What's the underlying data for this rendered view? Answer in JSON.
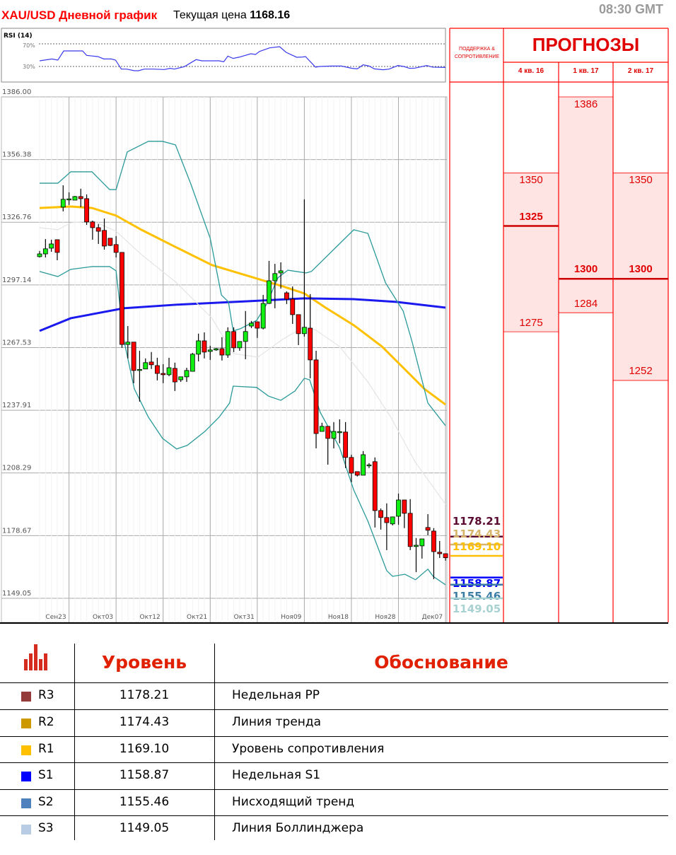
{
  "header": {
    "title": "XAU/USD Дневной график",
    "price_label": "Текущая цена",
    "price_value": "1168.16",
    "time": "08:30 GMT"
  },
  "chart_data": {
    "type": "candlestick",
    "instrument": "XAU/USD",
    "price_ticks": [
      "1386.00",
      "1356.38",
      "1326.76",
      "1297.14",
      "1267.53",
      "1237.91",
      "1208.29",
      "1178.67",
      "1149.05"
    ],
    "ylim": [
      1149.05,
      1386.0
    ],
    "date_ticks": [
      {
        "label": "Сен23",
        "candle": 6
      },
      {
        "label": "Окт03",
        "candle": 14
      },
      {
        "label": "Окт12",
        "candle": 22
      },
      {
        "label": "Окт21",
        "candle": 30
      },
      {
        "label": "Окт31",
        "candle": 38
      },
      {
        "label": "Ноя09",
        "candle": 46
      },
      {
        "label": "Ноя18",
        "candle": 54
      },
      {
        "label": "Ноя28",
        "candle": 62
      },
      {
        "label": "Дек07",
        "candle": 70
      }
    ],
    "grid": true,
    "candles_ohlc": [
      [
        1310.5,
        1313.2,
        1310.1,
        1311.8
      ],
      [
        1311.8,
        1318.8,
        1310.1,
        1314.2
      ],
      [
        1314.5,
        1318.5,
        1312.8,
        1316.5
      ],
      [
        1318.5,
        1318.5,
        1308.8,
        1312.5
      ],
      [
        1333.9,
        1344.2,
        1331.9,
        1337.6
      ],
      [
        1337.6,
        1340.9,
        1334.9,
        1337.8
      ],
      [
        1337.2,
        1339.2,
        1337.2,
        1338.9
      ],
      [
        1338.9,
        1342.6,
        1333.9,
        1337.9
      ],
      [
        1337.9,
        1339.9,
        1325.5,
        1326.9
      ],
      [
        1326.9,
        1327.5,
        1318.5,
        1324.2
      ],
      [
        1324.2,
        1325.9,
        1316.5,
        1322.5
      ],
      [
        1322.9,
        1328.5,
        1313.8,
        1315.5
      ],
      [
        1319.2,
        1319.2,
        1315.5,
        1315.8
      ],
      [
        1316.2,
        1320.2,
        1310.1,
        1312.5
      ],
      [
        1312.5,
        1312.5,
        1267.4,
        1269.0
      ],
      [
        1269.0,
        1277.7,
        1262.4,
        1270.1
      ],
      [
        1270.1,
        1270.1,
        1250.7,
        1256.7
      ],
      [
        1257.0,
        1266.0,
        1242.0,
        1257.2
      ],
      [
        1257.4,
        1262.4,
        1257.4,
        1260.4
      ],
      [
        1260.7,
        1265.4,
        1257.4,
        1259.4
      ],
      [
        1259.0,
        1262.7,
        1252.0,
        1255.3
      ],
      [
        1255.3,
        1259.7,
        1250.7,
        1254.7
      ],
      [
        1254.7,
        1262.7,
        1254.0,
        1258.0
      ],
      [
        1257.7,
        1260.4,
        1247.0,
        1251.3
      ],
      [
        1252.3,
        1253.7,
        1251.3,
        1253.7
      ],
      [
        1253.7,
        1258.0,
        1251.3,
        1256.7
      ],
      [
        1256.3,
        1265.0,
        1256.3,
        1264.4
      ],
      [
        1264.4,
        1274.1,
        1261.0,
        1270.7
      ],
      [
        1270.7,
        1274.7,
        1262.4,
        1265.4
      ],
      [
        1265.7,
        1268.4,
        1261.7,
        1266.4
      ],
      [
        1266.4,
        1267.4,
        1266.0,
        1267.0
      ],
      [
        1267.0,
        1272.4,
        1261.4,
        1264.0
      ],
      [
        1264.0,
        1277.1,
        1262.7,
        1275.1
      ],
      [
        1275.1,
        1277.1,
        1265.4,
        1267.4
      ],
      [
        1267.4,
        1270.4,
        1266.0,
        1270.4
      ],
      [
        1270.4,
        1284.8,
        1262.0,
        1275.1
      ],
      [
        1277.7,
        1280.1,
        1276.7,
        1279.1
      ],
      [
        1279.7,
        1279.7,
        1272.1,
        1276.7
      ],
      [
        1276.7,
        1292.4,
        1276.1,
        1288.4
      ],
      [
        1288.4,
        1308.5,
        1288.1,
        1299.1
      ],
      [
        1299.1,
        1307.1,
        1286.1,
        1302.5
      ],
      [
        1302.8,
        1307.8,
        1295.4,
        1303.8
      ],
      [
        1293.4,
        1294.1,
        1288.1,
        1290.4
      ],
      [
        1290.4,
        1296.4,
        1278.7,
        1283.1
      ],
      [
        1283.1,
        1283.1,
        1268.7,
        1274.1
      ],
      [
        1274.1,
        1337.6,
        1272.7,
        1277.1
      ],
      [
        1276.7,
        1292.8,
        1253.0,
        1261.7
      ],
      [
        1261.7,
        1266.0,
        1219.9,
        1226.9
      ],
      [
        1227.9,
        1232.0,
        1227.9,
        1230.3
      ],
      [
        1230.3,
        1230.3,
        1212.2,
        1224.6
      ],
      [
        1224.6,
        1232.3,
        1219.9,
        1227.9
      ],
      [
        1227.6,
        1233.6,
        1222.3,
        1227.8
      ],
      [
        1227.6,
        1232.3,
        1210.6,
        1215.6
      ],
      [
        1215.6,
        1216.9,
        1203.9,
        1208.2
      ],
      [
        1208.9,
        1208.9,
        1206.6,
        1207.2
      ],
      [
        1207.2,
        1218.6,
        1207.2,
        1216.9
      ],
      [
        1211.9,
        1212.9,
        1210.6,
        1212.1
      ],
      [
        1213.6,
        1215.6,
        1182.5,
        1190.5
      ],
      [
        1190.5,
        1191.5,
        1181.5,
        1187.2
      ],
      [
        1187.2,
        1193.9,
        1171.8,
        1184.8
      ],
      [
        1184.2,
        1187.5,
        1183.5,
        1187.5
      ],
      [
        1187.8,
        1198.5,
        1183.8,
        1195.5
      ],
      [
        1195.5,
        1195.5,
        1182.2,
        1189.2
      ],
      [
        1189.2,
        1195.9,
        1171.8,
        1173.5
      ],
      [
        1173.5,
        1177.5,
        1161.4,
        1174.1
      ],
      [
        1173.8,
        1177.1,
        1167.8,
        1177.1
      ],
      [
        1182.5,
        1188.8,
        1178.8,
        1181.2
      ],
      [
        1180.8,
        1182.2,
        1158.1,
        1171.1
      ],
      [
        1170.8,
        1176.1,
        1168.1,
        1170.1
      ],
      [
        1170.1,
        1170.1,
        1166.8,
        1168.2
      ]
    ],
    "indicator_lines": [
      {
        "kind": "moving-average",
        "color": "#ffc000",
        "points": [
          [
            1,
            1333.5
          ],
          [
            6.3,
            1334.2
          ],
          [
            9.9,
            1333.5
          ],
          [
            14,
            1329.9
          ],
          [
            18.3,
            1323.2
          ],
          [
            24.3,
            1314.8
          ],
          [
            30.3,
            1306.5
          ],
          [
            36.3,
            1301.5
          ],
          [
            42.3,
            1296.5
          ],
          [
            46,
            1293.1
          ],
          [
            49.6,
            1286.4
          ],
          [
            54.4,
            1278.1
          ],
          [
            59.2,
            1268.0
          ],
          [
            64,
            1254.7
          ],
          [
            66.4,
            1248.0
          ],
          [
            70,
            1240.6
          ]
        ]
      },
      {
        "kind": "moving-average",
        "color": "#1a1aee",
        "points": [
          [
            1,
            1275.4
          ],
          [
            6.3,
            1281.4
          ],
          [
            15.3,
            1286.1
          ],
          [
            24.3,
            1287.8
          ],
          [
            36.3,
            1289.4
          ],
          [
            46,
            1290.8
          ],
          [
            54.4,
            1290.4
          ],
          [
            61.6,
            1289.1
          ],
          [
            70,
            1286.4
          ]
        ]
      },
      {
        "kind": "bollinger-upper",
        "color": "#2a9a9a",
        "points": [
          [
            1,
            1345.2
          ],
          [
            4.1,
            1345.2
          ],
          [
            6.3,
            1350.6
          ],
          [
            9.9,
            1350.6
          ],
          [
            12.9,
            1342.2
          ],
          [
            14,
            1342.2
          ],
          [
            15.9,
            1360.0
          ],
          [
            19.5,
            1365.0
          ],
          [
            21.9,
            1365.0
          ],
          [
            24.1,
            1363.3
          ],
          [
            26.7,
            1344.9
          ],
          [
            30,
            1319.2
          ],
          [
            31.9,
            1292.4
          ],
          [
            33.1,
            1289.1
          ],
          [
            33.9,
            1275.4
          ],
          [
            35.1,
            1276.4
          ],
          [
            37.9,
            1280.4
          ],
          [
            39.6,
            1288.1
          ],
          [
            41.5,
            1300.5
          ],
          [
            43.2,
            1304.1
          ],
          [
            46.3,
            1302.8
          ],
          [
            47.2,
            1303.5
          ],
          [
            54.4,
            1323.2
          ],
          [
            56.8,
            1321.5
          ],
          [
            59.8,
            1298.1
          ],
          [
            62.8,
            1284.8
          ],
          [
            64.3,
            1270.4
          ],
          [
            67,
            1241.3
          ],
          [
            70,
            1230.6
          ]
        ]
      },
      {
        "kind": "bollinger-middle",
        "color": "#e4e4e4",
        "points": [
          [
            1,
            1324.2
          ],
          [
            4.1,
            1323.2
          ],
          [
            6.3,
            1326.5
          ],
          [
            9.9,
            1327.5
          ],
          [
            14,
            1322.5
          ],
          [
            18.3,
            1311.5
          ],
          [
            24.3,
            1298.1
          ],
          [
            30.3,
            1281.4
          ],
          [
            33.9,
            1264.7
          ],
          [
            38.1,
            1263.0
          ],
          [
            42.3,
            1271.4
          ],
          [
            46,
            1277.4
          ],
          [
            48,
            1275.7
          ],
          [
            52,
            1268.0
          ],
          [
            56.8,
            1251.3
          ],
          [
            60.7,
            1234.6
          ],
          [
            64.8,
            1213.6
          ],
          [
            70,
            1193.5
          ]
        ]
      },
      {
        "kind": "bollinger-lower",
        "color": "#2a9a9a",
        "points": [
          [
            1,
            1303.5
          ],
          [
            4.1,
            1301.1
          ],
          [
            6.3,
            1304.5
          ],
          [
            9.9,
            1305.8
          ],
          [
            12.9,
            1305.8
          ],
          [
            14,
            1303.8
          ],
          [
            15.3,
            1271.4
          ],
          [
            17.1,
            1248.0
          ],
          [
            19.5,
            1234.6
          ],
          [
            21.9,
            1224.6
          ],
          [
            24.3,
            1219.6
          ],
          [
            26.1,
            1221.3
          ],
          [
            29.1,
            1227.9
          ],
          [
            31.5,
            1234.6
          ],
          [
            33.3,
            1241.3
          ],
          [
            33.9,
            1249.3
          ],
          [
            37.9,
            1248.7
          ],
          [
            39.9,
            1244.6
          ],
          [
            42,
            1242.6
          ],
          [
            44.4,
            1247.0
          ],
          [
            46,
            1253.0
          ],
          [
            46.9,
            1252.3
          ],
          [
            48.7,
            1236.9
          ],
          [
            52,
            1220.2
          ],
          [
            54.4,
            1200.2
          ],
          [
            56.8,
            1185.5
          ],
          [
            60,
            1162.1
          ],
          [
            61,
            1159.4
          ],
          [
            63.1,
            1160.4
          ],
          [
            64.9,
            1157.8
          ],
          [
            67,
            1162.8
          ],
          [
            67.9,
            1159.4
          ],
          [
            70,
            1155.4
          ]
        ]
      }
    ],
    "rsi": {
      "label": "RSI (14)",
      "levels": [
        "70%",
        "30%"
      ],
      "color": "#3a3aee",
      "points": [
        [
          1,
          40.0
        ],
        [
          3.1,
          43.3
        ],
        [
          4.1,
          41.3
        ],
        [
          5.1,
          57.5
        ],
        [
          8.3,
          57.5
        ],
        [
          9,
          49.6
        ],
        [
          10.9,
          47.5
        ],
        [
          11.9,
          43.3
        ],
        [
          13.2,
          43.3
        ],
        [
          13.9,
          41.3
        ],
        [
          14.9,
          25.4
        ],
        [
          15.8,
          25.4
        ],
        [
          17.1,
          22.5
        ],
        [
          17.8,
          22.5
        ],
        [
          18.8,
          25.4
        ],
        [
          20.3,
          25.4
        ],
        [
          22.2,
          24.6
        ],
        [
          23.2,
          26.7
        ],
        [
          23.9,
          25.4
        ],
        [
          25.6,
          29.6
        ],
        [
          27.6,
          42.1
        ],
        [
          28.6,
          40.0
        ],
        [
          31.5,
          40.0
        ],
        [
          32.3,
          38.3
        ],
        [
          33,
          48.3
        ],
        [
          33.9,
          44.2
        ],
        [
          35,
          46.7
        ],
        [
          36.9,
          52.5
        ],
        [
          37.7,
          51.3
        ],
        [
          38.4,
          56.7
        ],
        [
          40.1,
          62.9
        ],
        [
          41.8,
          65.0
        ],
        [
          42.9,
          55.0
        ],
        [
          44.7,
          46.3
        ],
        [
          45.7,
          46.7
        ],
        [
          46.2,
          47.5
        ],
        [
          47.9,
          28.8
        ],
        [
          48.6,
          30.0
        ],
        [
          50.6,
          30.8
        ],
        [
          52.3,
          30.8
        ],
        [
          54.1,
          26.7
        ],
        [
          55,
          25.8
        ],
        [
          56,
          32.9
        ],
        [
          57,
          30.8
        ],
        [
          57.9,
          25.8
        ],
        [
          59.4,
          24.2
        ],
        [
          60.4,
          25.4
        ],
        [
          61.9,
          31.7
        ],
        [
          62.9,
          30.0
        ],
        [
          63.9,
          26.7
        ],
        [
          64.8,
          27.1
        ],
        [
          66.8,
          31.7
        ],
        [
          67.8,
          28.8
        ],
        [
          70,
          28.3
        ]
      ]
    },
    "support_resistance": [
      {
        "value": 1178.21,
        "label": "1178.21",
        "color": "#5a0a30"
      },
      {
        "value": 1174.43,
        "label": "1174.43",
        "color": "#d6b46a"
      },
      {
        "value": 1169.1,
        "label": "1169.10",
        "color": "#ffc000"
      },
      {
        "value": 1158.87,
        "label": "1158.87",
        "color": "#0000ff"
      },
      {
        "value": 1155.46,
        "label": "1155.46",
        "color": "#3a7ca5"
      },
      {
        "value": 1149.05,
        "label": "1149.05",
        "color": "#a8d2d2"
      }
    ]
  },
  "forecast": {
    "sr_header": "ПОДДЕРЖКА & СОПРОТИВЛЕНИЕ",
    "title": "ПРОГНОЗЫ",
    "accent": "#ff0000",
    "zone_color": "#ffe4e4",
    "quarters": [
      {
        "label": "4 кв. 16",
        "high": 1350,
        "main": 1325,
        "low": 1275,
        "high_label": "1350",
        "main_label": "1325",
        "low_label": "1275"
      },
      {
        "label": "1 кв. 17",
        "high": 1386,
        "main": 1300,
        "low": 1284,
        "high_label": "1386",
        "main_label": "1300",
        "low_label": "1284"
      },
      {
        "label": "2 кв. 17",
        "high": 1350,
        "main": 1300,
        "low": 1252,
        "high_label": "1350",
        "main_label": "1300",
        "low_label": "1252"
      }
    ]
  },
  "levels_table": {
    "icon": "bar-chart-icon",
    "col_level": "Уровень",
    "col_reason": "Обоснование",
    "rows": [
      {
        "name": "R3",
        "value": "1178.21",
        "reason": "Недельная PP",
        "color": "#943c3c"
      },
      {
        "name": "R2",
        "value": "1174.43",
        "reason": "Линия тренда",
        "color": "#cc9900"
      },
      {
        "name": "R1",
        "value": "1169.10",
        "reason": "Уровень сопротивления",
        "color": "#ffc000"
      },
      {
        "name": "S1",
        "value": "1158.87",
        "reason": "Недельная S1",
        "color": "#0000ff"
      },
      {
        "name": "S2",
        "value": "1155.46",
        "reason": "Нисходящий тренд",
        "color": "#4f81bd"
      },
      {
        "name": "S3",
        "value": "1149.05",
        "reason": "Линия Боллинджера",
        "color": "#b8cce4"
      }
    ]
  }
}
